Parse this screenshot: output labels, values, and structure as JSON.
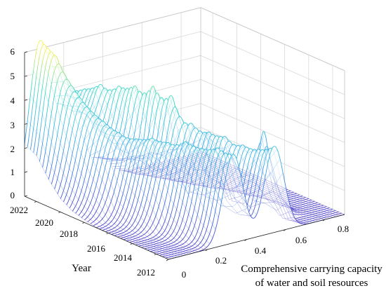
{
  "chart_data": {
    "type": "surface",
    "title": "",
    "xlabel": [
      "Comprehensive carrying capacity",
      "of water and soil resources"
    ],
    "ylabel": "Year",
    "zlabel": "",
    "xlim": [
      0,
      0.9
    ],
    "ylim": [
      2011,
      2023
    ],
    "zlim": [
      0,
      6
    ],
    "x_ticks": [
      "0",
      "0.2",
      "0.4",
      "0.6",
      "0.8"
    ],
    "y_ticks": [
      "2012",
      "2014",
      "2016",
      "2018",
      "2020",
      "2022"
    ],
    "z_ticks": [
      "0",
      "1",
      "2",
      "3",
      "4",
      "5",
      "6"
    ],
    "grid": true,
    "colormap": [
      "#4a3cc8",
      "#4678e0",
      "#3fb4e6",
      "#42d8c8",
      "#f4f060"
    ],
    "years": [
      2011,
      2012,
      2013,
      2014,
      2015,
      2016,
      2017,
      2018,
      2019,
      2020,
      2021,
      2022,
      2023
    ],
    "density_peaks": [
      {
        "year": 2011,
        "peaks": [
          {
            "x": 0.33,
            "h": 3.7,
            "w": 0.05
          },
          {
            "x": 0.54,
            "h": 3.6,
            "w": 0.05
          }
        ]
      },
      {
        "year": 2012,
        "peaks": [
          {
            "x": 0.31,
            "h": 3.8,
            "w": 0.05
          },
          {
            "x": 0.52,
            "h": 3.3,
            "w": 0.05
          }
        ]
      },
      {
        "year": 2013,
        "peaks": [
          {
            "x": 0.29,
            "h": 3.6,
            "w": 0.055
          },
          {
            "x": 0.5,
            "h": 3.3,
            "w": 0.05
          },
          {
            "x": 0.67,
            "h": 1.0,
            "w": 0.04
          }
        ]
      },
      {
        "year": 2014,
        "peaks": [
          {
            "x": 0.27,
            "h": 3.7,
            "w": 0.055
          },
          {
            "x": 0.47,
            "h": 3.5,
            "w": 0.05
          },
          {
            "x": 0.67,
            "h": 3.3,
            "w": 0.028
          }
        ]
      },
      {
        "year": 2015,
        "peaks": [
          {
            "x": 0.24,
            "h": 3.5,
            "w": 0.06
          },
          {
            "x": 0.45,
            "h": 3.5,
            "w": 0.05
          },
          {
            "x": 0.65,
            "h": 1.3,
            "w": 0.04
          }
        ]
      },
      {
        "year": 2016,
        "peaks": [
          {
            "x": 0.22,
            "h": 3.5,
            "w": 0.06
          },
          {
            "x": 0.42,
            "h": 3.7,
            "w": 0.055
          },
          {
            "x": 0.6,
            "h": 2.3,
            "w": 0.045
          }
        ]
      },
      {
        "year": 2017,
        "peaks": [
          {
            "x": 0.2,
            "h": 3.3,
            "w": 0.06
          },
          {
            "x": 0.38,
            "h": 4.7,
            "w": 0.045
          },
          {
            "x": 0.56,
            "h": 2.8,
            "w": 0.05
          }
        ]
      },
      {
        "year": 2018,
        "peaks": [
          {
            "x": 0.17,
            "h": 3.4,
            "w": 0.065
          },
          {
            "x": 0.35,
            "h": 4.9,
            "w": 0.04
          },
          {
            "x": 0.52,
            "h": 2.3,
            "w": 0.05
          }
        ]
      },
      {
        "year": 2019,
        "peaks": [
          {
            "x": 0.15,
            "h": 3.7,
            "w": 0.065
          },
          {
            "x": 0.32,
            "h": 4.7,
            "w": 0.045
          },
          {
            "x": 0.49,
            "h": 1.8,
            "w": 0.05
          }
        ]
      },
      {
        "year": 2020,
        "peaks": [
          {
            "x": 0.13,
            "h": 4.1,
            "w": 0.065
          },
          {
            "x": 0.3,
            "h": 4.5,
            "w": 0.05
          },
          {
            "x": 0.46,
            "h": 1.5,
            "w": 0.05
          }
        ]
      },
      {
        "year": 2021,
        "peaks": [
          {
            "x": 0.11,
            "h": 4.8,
            "w": 0.065
          },
          {
            "x": 0.27,
            "h": 4.3,
            "w": 0.05
          },
          {
            "x": 0.43,
            "h": 1.2,
            "w": 0.05
          }
        ]
      },
      {
        "year": 2022,
        "peaks": [
          {
            "x": 0.09,
            "h": 5.9,
            "w": 0.06
          },
          {
            "x": 0.25,
            "h": 4.0,
            "w": 0.05
          },
          {
            "x": 0.4,
            "h": 0.9,
            "w": 0.05
          }
        ]
      },
      {
        "year": 2023,
        "peaks": [
          {
            "x": 0.08,
            "h": 6.3,
            "w": 0.055
          },
          {
            "x": 0.23,
            "h": 3.8,
            "w": 0.05
          },
          {
            "x": 0.38,
            "h": 0.8,
            "w": 0.05
          }
        ]
      }
    ]
  }
}
